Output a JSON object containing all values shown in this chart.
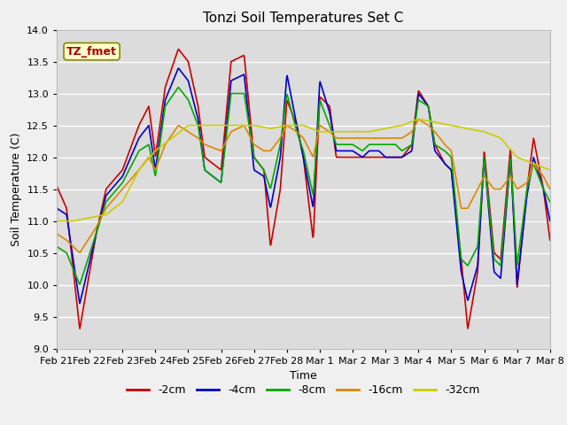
{
  "title": "Tonzi Soil Temperatures Set C",
  "xlabel": "Time",
  "ylabel": "Soil Temperature (C)",
  "ylim": [
    9.0,
    14.0
  ],
  "yticks": [
    9.0,
    9.5,
    10.0,
    10.5,
    11.0,
    11.5,
    12.0,
    12.5,
    13.0,
    13.5,
    14.0
  ],
  "plot_bg_color": "#dcdcdc",
  "fig_bg_color": "#f0f0f0",
  "legend_label": "TZ_fmet",
  "legend_box_facecolor": "#ffffcc",
  "legend_box_edgecolor": "#888800",
  "series_labels": [
    "-2cm",
    "-4cm",
    "-8cm",
    "-16cm",
    "-32cm"
  ],
  "series_colors": [
    "#cc0000",
    "#0000cc",
    "#00aa00",
    "#dd8800",
    "#cccc00"
  ],
  "series_linewidth": 1.2,
  "grid_color": "#ffffff",
  "grid_linewidth": 1.0,
  "title_fontsize": 11,
  "axis_label_fontsize": 9,
  "tick_fontsize": 8,
  "legend_fontsize": 9,
  "xtick_labels": [
    "Feb 21",
    "Feb 22",
    "Feb 23",
    "Feb 24",
    "Feb 25",
    "Feb 26",
    "Feb 27",
    "Feb 28",
    "Mar 1",
    "Mar 2",
    "Mar 3",
    "Mar 4",
    "Mar 5",
    "Mar 6",
    "Mar 7",
    "Mar 8"
  ],
  "n_points": 960
}
